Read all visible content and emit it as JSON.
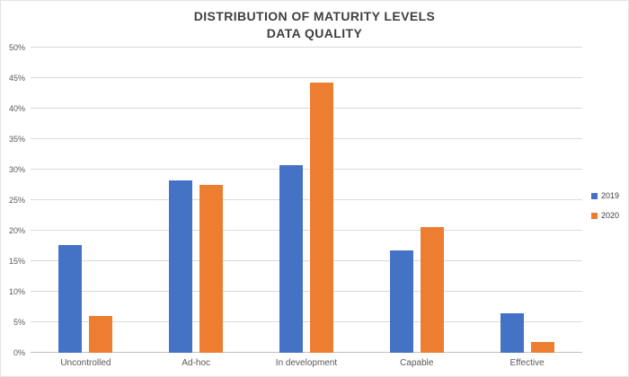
{
  "chart_data": {
    "type": "bar",
    "title_line1": "DISTRIBUTION OF MATURITY LEVELS",
    "title_line2": "DATA QUALITY",
    "categories": [
      "Uncontrolled",
      "Ad-hoc",
      "In development",
      "Capable",
      "Effective"
    ],
    "series": [
      {
        "name": "2019",
        "color": "#4472C4",
        "values": [
          17.6,
          28.3,
          30.7,
          16.8,
          6.5
        ]
      },
      {
        "name": "2020",
        "color": "#ED7D31",
        "values": [
          6.0,
          27.5,
          44.2,
          20.6,
          1.7
        ]
      }
    ],
    "ylim": [
      0,
      50
    ],
    "ytick_step": 5,
    "ytick_suffix": "%",
    "grid": true,
    "legend_position": "right"
  },
  "colors": {
    "gridline": "#d9d9d9",
    "axis_line": "#bfbfbf",
    "tick_text": "#595959",
    "title_text": "#3f3f3f",
    "legend_text": "#404040",
    "background": "#ffffff"
  }
}
